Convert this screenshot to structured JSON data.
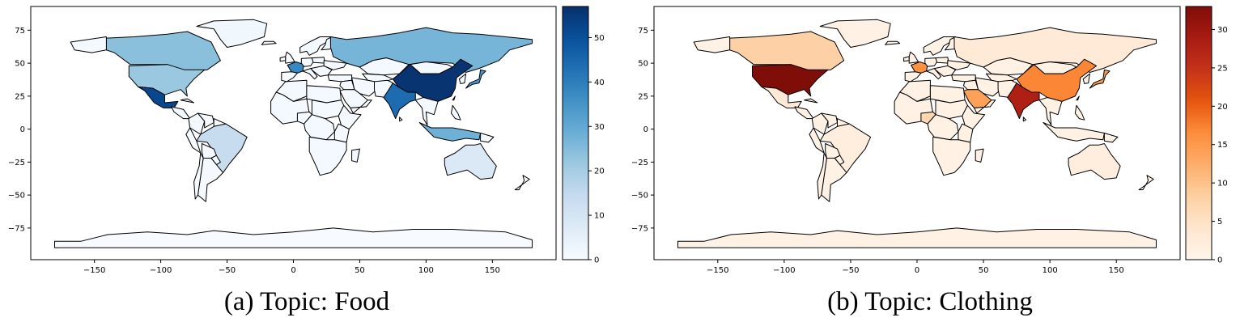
{
  "panels": [
    {
      "id": "food",
      "caption": "(a) Topic: Food",
      "colormap": "Blues",
      "colorbar": {
        "ticks": [
          0,
          10,
          20,
          30,
          40,
          50
        ],
        "vmin": 0,
        "vmax": 57
      },
      "countries": [
        {
          "name": "China",
          "value": 56
        },
        {
          "name": "Mexico",
          "value": 52
        },
        {
          "name": "India",
          "value": 44
        },
        {
          "name": "France",
          "value": 38
        },
        {
          "name": "Japan",
          "value": 34
        },
        {
          "name": "Indonesia",
          "value": 28
        },
        {
          "name": "Russia",
          "value": 27
        },
        {
          "name": "Canada",
          "value": 24
        },
        {
          "name": "United States",
          "value": 22
        },
        {
          "name": "Thailand",
          "value": 22
        },
        {
          "name": "Kenya",
          "value": 20
        },
        {
          "name": "Brazil",
          "value": 14
        },
        {
          "name": "Australia",
          "value": 8
        },
        {
          "name": "Greenland",
          "value": 2
        },
        {
          "name": "Antarctica",
          "value": 0
        }
      ]
    },
    {
      "id": "clothing",
      "caption": "(b) Topic: Clothing",
      "colormap": "OrRd",
      "colorbar": {
        "ticks": [
          0,
          5,
          10,
          15,
          20,
          25,
          30
        ],
        "vmin": 0,
        "vmax": 33
      },
      "countries": [
        {
          "name": "United States",
          "value": 33
        },
        {
          "name": "India",
          "value": 28
        },
        {
          "name": "China",
          "value": 17
        },
        {
          "name": "Saudi Arabia",
          "value": 14
        },
        {
          "name": "France",
          "value": 16
        },
        {
          "name": "Japan",
          "value": 15
        },
        {
          "name": "Canada",
          "value": 8
        },
        {
          "name": "Nigeria",
          "value": 7
        },
        {
          "name": "Russia",
          "value": 3
        },
        {
          "name": "Mexico",
          "value": 3
        },
        {
          "name": "Brazil",
          "value": 2
        },
        {
          "name": "Australia",
          "value": 2
        },
        {
          "name": "Greenland",
          "value": 1
        },
        {
          "name": "Antarctica",
          "value": 1
        }
      ]
    }
  ],
  "axes": {
    "xticks": [
      -150,
      -100,
      -50,
      0,
      50,
      100,
      150
    ],
    "yticks": [
      75,
      50,
      25,
      0,
      -25,
      -50,
      -75
    ],
    "xlim": [
      -198,
      198
    ],
    "ylim": [
      -99,
      93
    ]
  }
}
